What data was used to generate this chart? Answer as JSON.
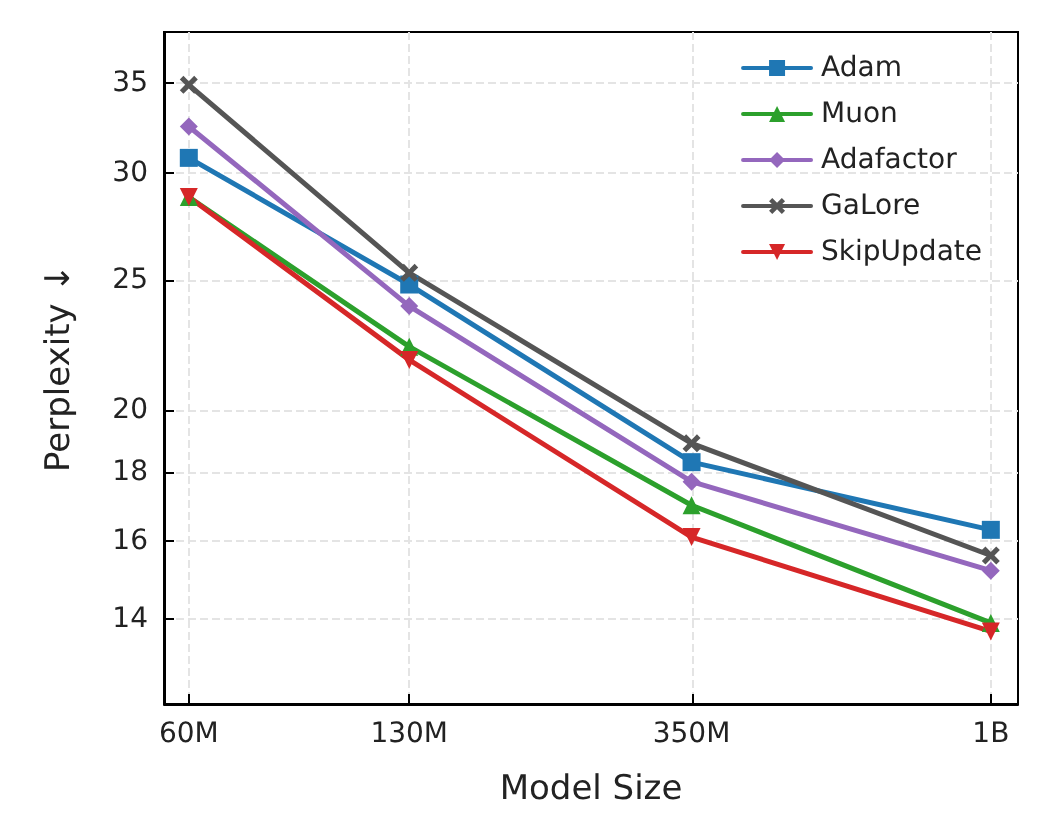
{
  "chart_data": {
    "type": "line",
    "xlabel": "Model Size",
    "ylabel": "Perplexity ↓",
    "x": [
      60000000,
      130000000,
      350000000,
      1000000000
    ],
    "series": [
      {
        "name": "Adam",
        "color": "#1f77b4",
        "marker": "square",
        "values": [
          30.8,
          24.8,
          18.3,
          16.3
        ]
      },
      {
        "name": "Muon",
        "color": "#2ca02c",
        "marker": "triangle",
        "values": [
          28.8,
          22.3,
          17.0,
          13.9
        ]
      },
      {
        "name": "Adafactor",
        "color": "#9467bd",
        "marker": "diamond",
        "values": [
          32.5,
          23.9,
          17.7,
          15.2
        ]
      },
      {
        "name": "GaLore",
        "color": "#555555",
        "marker": "cross",
        "values": [
          34.9,
          25.3,
          18.9,
          15.6
        ]
      },
      {
        "name": "SkipUpdate",
        "color": "#d62728",
        "marker": "triangle-down",
        "values": [
          28.8,
          21.8,
          16.1,
          13.7
        ]
      }
    ],
    "log": "xy",
    "xlim": [
      55000000,
      1100000000
    ],
    "ylim": [
      12.1,
      38.2
    ],
    "xticks": [
      {
        "value": 60000000,
        "label": "60M"
      },
      {
        "value": 130000000,
        "label": "130M"
      },
      {
        "value": 350000000,
        "label": "350M"
      },
      {
        "value": 1000000000,
        "label": "1B"
      }
    ],
    "yticks": [
      14,
      16,
      18,
      20,
      25,
      30,
      35
    ],
    "grid": true,
    "legend": "top right",
    "line_style": "solid"
  }
}
